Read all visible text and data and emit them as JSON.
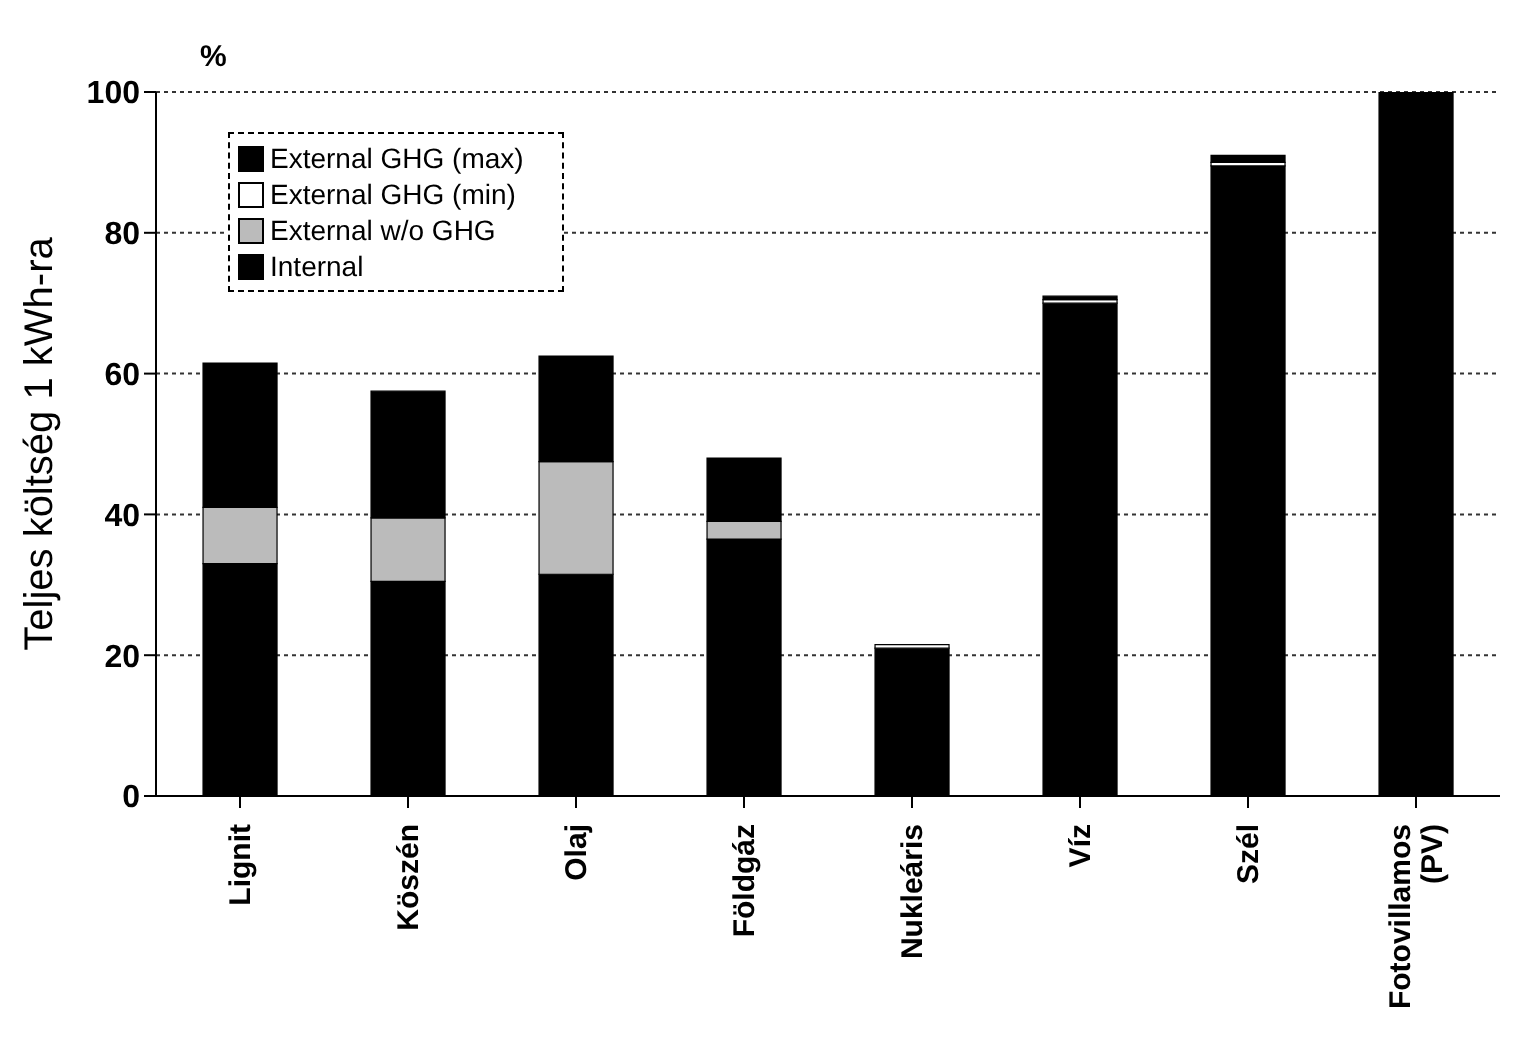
{
  "chart_data": {
    "type": "bar",
    "stacked": true,
    "ylabel": "Teljes költség 1 kWh-ra",
    "annotations": [
      "%"
    ],
    "categories": [
      "Lignit",
      "Köszén",
      "Olaj",
      "Földgáz",
      "Nukleáris",
      "Víz",
      "Szél",
      "Fotovillamos (PV)"
    ],
    "series": [
      {
        "name": "Internal",
        "color": "#000000",
        "values": [
          33,
          30.5,
          31.5,
          36.5,
          21,
          70,
          89.5,
          100
        ]
      },
      {
        "name": "External w/o GHG",
        "color": "#bbbbbb",
        "values": [
          8,
          9,
          16,
          2.5,
          0,
          0,
          0,
          0
        ]
      },
      {
        "name": "External GHG (min)",
        "color": "#ffffff",
        "values": [
          0,
          0,
          0,
          0,
          0.5,
          0.5,
          0.5,
          0
        ]
      },
      {
        "name": "External GHG (max)",
        "color": "#000000",
        "values": [
          20.5,
          18,
          15,
          9,
          0,
          0.5,
          1,
          0
        ]
      }
    ],
    "ylim": [
      0,
      100
    ],
    "yticks": [
      0,
      20,
      40,
      60,
      80,
      100
    ],
    "grid": "y",
    "legend": "top left"
  }
}
